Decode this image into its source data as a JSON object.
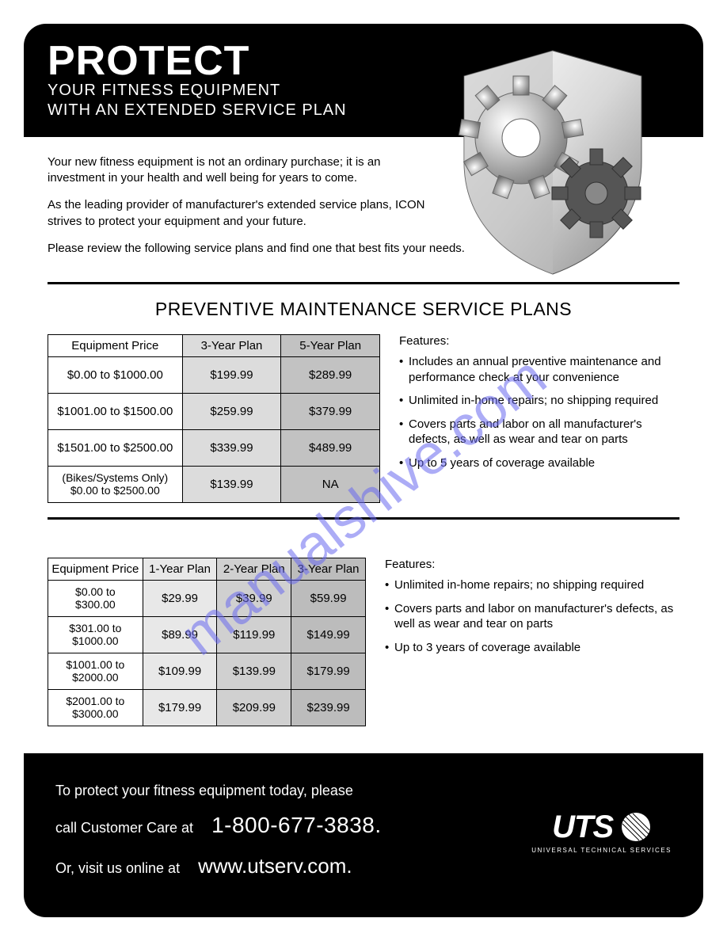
{
  "header": {
    "title": "PROTECT",
    "sub1": "YOUR FITNESS EQUIPMENT",
    "sub2": "WITH AN EXTENDED SERVICE PLAN"
  },
  "intro": {
    "p1": "Your new fitness equipment is not an ordinary purchase; it is an investment in your health and well being for years to come.",
    "p2": "As the leading provider of manufacturer's extended service plans, ICON strives to protect your equipment and your future.",
    "p3": "Please review the following service plans and find one that best fits your needs."
  },
  "section1": {
    "title": "PREVENTIVE MAINTENANCE SERVICE PLANS",
    "columns": [
      "Equipment Price",
      "3-Year Plan",
      "5-Year Plan"
    ],
    "col_bg": [
      "#ffffff",
      "#dcdcdc",
      "#c2c2c2"
    ],
    "rows": [
      [
        "$0.00 to $1000.00",
        "$199.99",
        "$289.99"
      ],
      [
        "$1001.00 to $1500.00",
        "$259.99",
        "$379.99"
      ],
      [
        "$1501.00 to $2500.00",
        "$339.99",
        "$489.99"
      ],
      [
        "(Bikes/Systems Only)\n$0.00 to $2500.00",
        "$139.99",
        "NA"
      ]
    ],
    "features_title": "Features:",
    "features": [
      "Includes an annual preventive maintenance and performance check at your convenience",
      "Unlimited in-home repairs; no shipping required",
      "Covers parts and labor on all manufacturer's defects, as well as wear and tear on parts",
      "Up to 5 years of coverage available"
    ]
  },
  "section2": {
    "columns": [
      "Equipment Price",
      "1-Year Plan",
      "2-Year Plan",
      "3-Year Plan"
    ],
    "col_bg": [
      "#ffffff",
      "#e8e8e8",
      "#d0d0d0",
      "#bcbcbc"
    ],
    "rows": [
      [
        "$0.00 to\n$300.00",
        "$29.99",
        "$39.99",
        "$59.99"
      ],
      [
        "$301.00 to\n$1000.00",
        "$89.99",
        "$119.99",
        "$149.99"
      ],
      [
        "$1001.00 to\n$2000.00",
        "$109.99",
        "$139.99",
        "$179.99"
      ],
      [
        "$2001.00 to\n$3000.00",
        "$179.99",
        "$209.99",
        "$239.99"
      ]
    ],
    "features_title": "Features:",
    "features": [
      "Unlimited in-home repairs; no shipping required",
      "Covers parts and labor on manufacturer's defects, as well as wear and tear on parts",
      "Up to 3 years of coverage available"
    ]
  },
  "footer": {
    "line1": "To protect your fitness equipment today, please",
    "line2a": "call Customer Care at",
    "phone": "1-800-677-3838.",
    "line3a": "Or, visit us online at",
    "url": "www.utserv.com.",
    "brand": "UTS",
    "brand_sub": "UNIVERSAL TECHNICAL SERVICES"
  },
  "watermark": "manualshive.com",
  "colors": {
    "black": "#000000",
    "white": "#ffffff",
    "watermark": "#6a6af0"
  }
}
